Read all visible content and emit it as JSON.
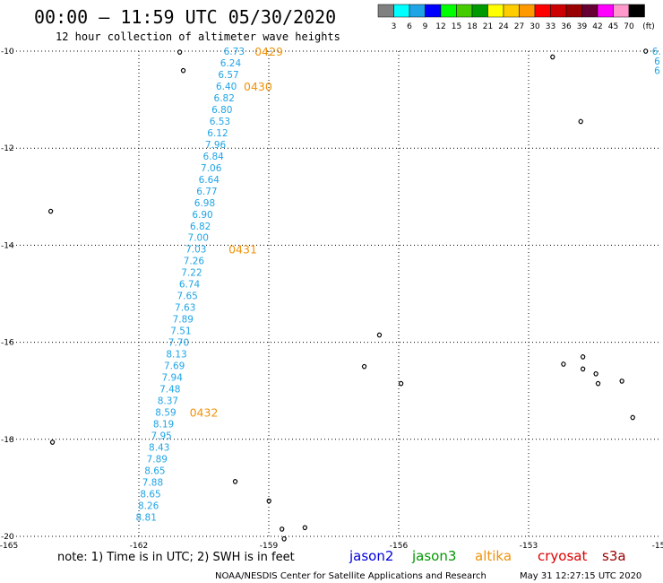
{
  "header": {
    "title": "00:00 – 11:59 UTC 05/30/2020",
    "subtitle": "12 hour collection of altimeter wave heights"
  },
  "colorbar": {
    "colors": [
      "#808080",
      "#00ffff",
      "#1fa4e6",
      "#0000ff",
      "#00ff00",
      "#44cc00",
      "#009900",
      "#ffff00",
      "#ffcc00",
      "#ff9900",
      "#ff0000",
      "#cc0000",
      "#990000",
      "#660033",
      "#ff00ff",
      "#ff99cc",
      "#000000"
    ],
    "labels": [
      "3",
      "6",
      "9",
      "12",
      "15",
      "18",
      "21",
      "24",
      "27",
      "30",
      "33",
      "36",
      "39",
      "42",
      "45",
      "70"
    ],
    "unit": "(ft)"
  },
  "map": {
    "lon_min": -165,
    "lon_max": -150,
    "lat_min": -20,
    "lat_max": -10,
    "lon_ticks": [
      {
        "value": -165,
        "label": "-165"
      },
      {
        "value": -162,
        "label": "-162"
      },
      {
        "value": -159,
        "label": "-159"
      },
      {
        "value": -156,
        "label": "-156"
      },
      {
        "value": -153,
        "label": "-153"
      },
      {
        "value": -150,
        "label": "-15"
      }
    ],
    "lat_ticks": [
      {
        "value": -10,
        "label": "-10"
      },
      {
        "value": -12,
        "label": "-12"
      },
      {
        "value": -14,
        "label": "-14"
      },
      {
        "value": -16,
        "label": "-16"
      },
      {
        "value": -18,
        "label": "-18"
      },
      {
        "value": -20,
        "label": "-20"
      }
    ],
    "track": [
      {
        "lon": -159.8,
        "lat": -10.0,
        "swh": "6.73"
      },
      {
        "lon": -159.88,
        "lat": -10.24,
        "swh": "6.24"
      },
      {
        "lon": -159.93,
        "lat": -10.48,
        "swh": "6.57"
      },
      {
        "lon": -159.98,
        "lat": -10.72,
        "swh": "6.40"
      },
      {
        "lon": -160.03,
        "lat": -10.96,
        "swh": "6.82"
      },
      {
        "lon": -160.08,
        "lat": -11.2,
        "swh": "6.80"
      },
      {
        "lon": -160.13,
        "lat": -11.44,
        "swh": "6.53"
      },
      {
        "lon": -160.18,
        "lat": -11.68,
        "swh": "6.12"
      },
      {
        "lon": -160.23,
        "lat": -11.92,
        "swh": "7.96"
      },
      {
        "lon": -160.28,
        "lat": -12.16,
        "swh": "6.84"
      },
      {
        "lon": -160.33,
        "lat": -12.4,
        "swh": "7.06"
      },
      {
        "lon": -160.38,
        "lat": -12.64,
        "swh": "6.64"
      },
      {
        "lon": -160.43,
        "lat": -12.88,
        "swh": "6.77"
      },
      {
        "lon": -160.48,
        "lat": -13.12,
        "swh": "6.98"
      },
      {
        "lon": -160.53,
        "lat": -13.36,
        "swh": "6.90"
      },
      {
        "lon": -160.58,
        "lat": -13.6,
        "swh": "6.82"
      },
      {
        "lon": -160.63,
        "lat": -13.84,
        "swh": "7.00"
      },
      {
        "lon": -160.68,
        "lat": -14.08,
        "swh": "7.03"
      },
      {
        "lon": -160.73,
        "lat": -14.32,
        "swh": "7.26"
      },
      {
        "lon": -160.78,
        "lat": -14.56,
        "swh": "7.22"
      },
      {
        "lon": -160.83,
        "lat": -14.8,
        "swh": "6.74"
      },
      {
        "lon": -160.88,
        "lat": -15.04,
        "swh": "7.65"
      },
      {
        "lon": -160.93,
        "lat": -15.28,
        "swh": "7.63"
      },
      {
        "lon": -160.98,
        "lat": -15.52,
        "swh": "7.89"
      },
      {
        "lon": -161.03,
        "lat": -15.76,
        "swh": "7.51"
      },
      {
        "lon": -161.08,
        "lat": -16.0,
        "swh": "7.70"
      },
      {
        "lon": -161.13,
        "lat": -16.24,
        "swh": "8.13"
      },
      {
        "lon": -161.18,
        "lat": -16.48,
        "swh": "7.69"
      },
      {
        "lon": -161.23,
        "lat": -16.72,
        "swh": "7.94"
      },
      {
        "lon": -161.28,
        "lat": -16.96,
        "swh": "7.48"
      },
      {
        "lon": -161.33,
        "lat": -17.2,
        "swh": "8.37"
      },
      {
        "lon": -161.38,
        "lat": -17.44,
        "swh": "8.59"
      },
      {
        "lon": -161.43,
        "lat": -17.68,
        "swh": "8.19"
      },
      {
        "lon": -161.48,
        "lat": -17.92,
        "swh": "7.95"
      },
      {
        "lon": -161.53,
        "lat": -18.16,
        "swh": "8.43"
      },
      {
        "lon": -161.58,
        "lat": -18.4,
        "swh": "7.89"
      },
      {
        "lon": -161.63,
        "lat": -18.64,
        "swh": "8.65"
      },
      {
        "lon": -161.68,
        "lat": -18.88,
        "swh": "7.88"
      },
      {
        "lon": -161.73,
        "lat": -19.12,
        "swh": "8.65"
      },
      {
        "lon": -161.78,
        "lat": -19.36,
        "swh": "8.26"
      },
      {
        "lon": -161.83,
        "lat": -19.6,
        "swh": "8.81"
      }
    ],
    "pass_times": [
      {
        "lon": -159.0,
        "lat": -10.0,
        "label": "0429"
      },
      {
        "lon": -159.25,
        "lat": -10.72,
        "label": "0430"
      },
      {
        "lon": -159.6,
        "lat": -14.08,
        "label": "0431"
      },
      {
        "lon": -160.5,
        "lat": -17.44,
        "label": "0432"
      }
    ],
    "edge_values": [
      {
        "lon": -150.15,
        "lat": -10.0,
        "swh": "6."
      },
      {
        "lon": -150.1,
        "lat": -10.2,
        "swh": "6"
      },
      {
        "lon": -150.1,
        "lat": -10.4,
        "swh": "6"
      }
    ],
    "islands": [
      {
        "lon": -161.06,
        "lat": -10.02
      },
      {
        "lon": -160.98,
        "lat": -10.4
      },
      {
        "lon": -164.04,
        "lat": -13.3
      },
      {
        "lon": -164.0,
        "lat": -18.06
      },
      {
        "lon": -159.78,
        "lat": -18.87
      },
      {
        "lon": -159.0,
        "lat": -19.27
      },
      {
        "lon": -158.7,
        "lat": -19.85
      },
      {
        "lon": -158.17,
        "lat": -19.82
      },
      {
        "lon": -158.65,
        "lat": -20.05
      },
      {
        "lon": -156.45,
        "lat": -15.85
      },
      {
        "lon": -156.8,
        "lat": -16.5
      },
      {
        "lon": -155.95,
        "lat": -16.85
      },
      {
        "lon": -152.45,
        "lat": -10.12
      },
      {
        "lon": -151.8,
        "lat": -11.45
      },
      {
        "lon": -151.75,
        "lat": -16.3
      },
      {
        "lon": -152.2,
        "lat": -16.45
      },
      {
        "lon": -151.75,
        "lat": -16.55
      },
      {
        "lon": -151.45,
        "lat": -16.65
      },
      {
        "lon": -151.4,
        "lat": -16.85
      },
      {
        "lon": -150.85,
        "lat": -16.8
      },
      {
        "lon": -150.6,
        "lat": -17.55
      },
      {
        "lon": -150.3,
        "lat": -10.0
      }
    ]
  },
  "footer": {
    "note": "note: 1) Time is in UTC; 2) SWH is in feet",
    "satellites": [
      {
        "name": "jason2",
        "color": "#0000dd"
      },
      {
        "name": "jason3",
        "color": "#009900"
      },
      {
        "name": "altika",
        "color": "#f0920a"
      },
      {
        "name": "cryosat",
        "color": "#dd0000"
      },
      {
        "name": "s3a",
        "color": "#990000"
      }
    ],
    "credit": "NOAA/NESDIS Center for Satellite Applications and Research",
    "timestamp": "May 31 12:27:15 UTC 2020"
  }
}
